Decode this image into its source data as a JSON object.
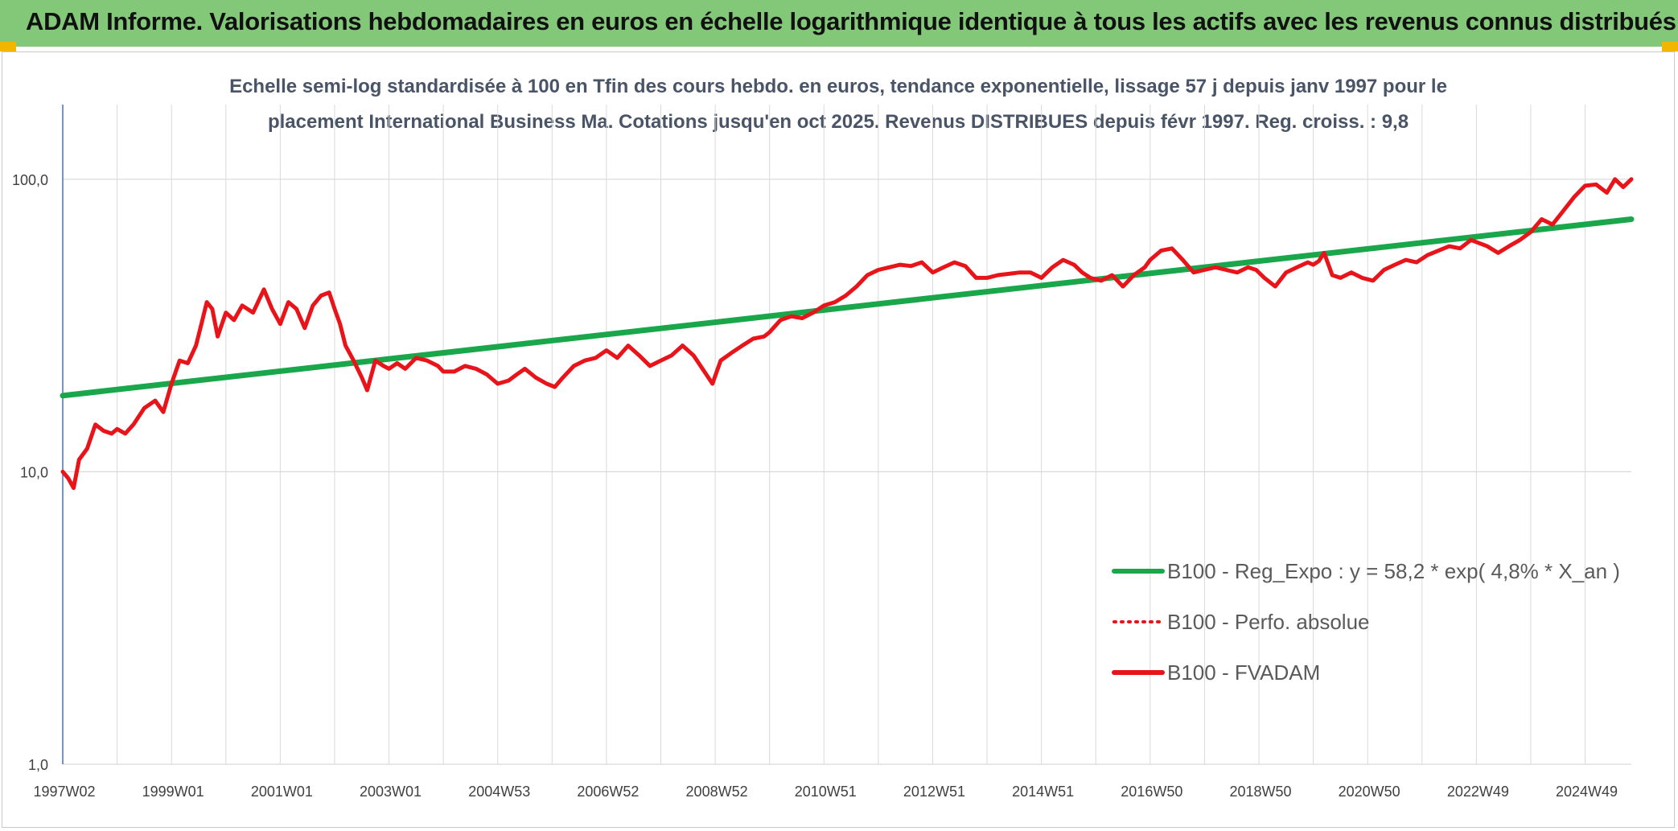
{
  "header": {
    "title": "ADAM Informe. Valorisations hebdomadaires en euros en échelle logarithmique identique à tous les actifs avec les revenus connus distribués"
  },
  "colors": {
    "banner": "#82c878",
    "corner": "#f2b600",
    "trend": "#1aa64a",
    "fvadam": "#e8141a",
    "grid": "#d9d9d9"
  },
  "chart_data": {
    "type": "line",
    "title": "",
    "subtitle_lines": [
      "Echelle semi-log standardisée à 100 en Tfin des cours hebdo. en euros, tendance exponentielle, lissage 57 j depuis janv 1997 pour le",
      "placement International Business Ma. Cotations jusqu'en oct 2025. Revenus DISTRIBUES depuis févr 1997. Reg. croiss. : 9,8"
    ],
    "yscale": "log",
    "ylim": [
      1,
      180
    ],
    "xlim": [
      1997.0,
      2025.85
    ],
    "grid": "y-major and x-category lines",
    "legend_position": "bottom-right",
    "y_ticks": [
      {
        "value": 1,
        "label": "1,0"
      },
      {
        "value": 10,
        "label": "10,0"
      },
      {
        "value": 100,
        "label": "100,0"
      }
    ],
    "x_ticks": [
      {
        "value": 1997.0,
        "label": "1997W02"
      },
      {
        "value": 1999.0,
        "label": "1999W01"
      },
      {
        "value": 2001.0,
        "label": "2001W01"
      },
      {
        "value": 2003.0,
        "label": "2003W01"
      },
      {
        "value": 2005.0,
        "label": "2004W53"
      },
      {
        "value": 2007.0,
        "label": "2006W52"
      },
      {
        "value": 2009.0,
        "label": "2008W52"
      },
      {
        "value": 2011.0,
        "label": "2010W51"
      },
      {
        "value": 2013.0,
        "label": "2012W51"
      },
      {
        "value": 2015.0,
        "label": "2014W51"
      },
      {
        "value": 2017.0,
        "label": "2016W50"
      },
      {
        "value": 2019.0,
        "label": "2018W50"
      },
      {
        "value": 2021.0,
        "label": "2020W50"
      },
      {
        "value": 2023.0,
        "label": "2022W49"
      },
      {
        "value": 2025.0,
        "label": "2024W49"
      }
    ],
    "x_gridlines": [
      1997.0,
      1998.0,
      1999.0,
      2000.0,
      2001.0,
      2002.0,
      2003.0,
      2004.0,
      2005.0,
      2006.0,
      2007.0,
      2008.0,
      2009.0,
      2010.0,
      2011.0,
      2012.0,
      2013.0,
      2014.0,
      2015.0,
      2016.0,
      2017.0,
      2018.0,
      2019.0,
      2020.0,
      2021.0,
      2022.0,
      2023.0,
      2024.0,
      2025.0
    ],
    "series": [
      {
        "name": "B100 - Reg_Expo : y = 58,2 * exp( 4,8% *  X_an )",
        "style": "solid",
        "color": "#1aa64a",
        "x": [
          1997.0,
          2025.85
        ],
        "y": [
          18.2,
          73.0
        ]
      },
      {
        "name": "B100 - Perfo. absolue",
        "style": "dotted",
        "color": "#e8141a",
        "x": [],
        "y": []
      },
      {
        "name": "B100 - FVADAM",
        "style": "solid",
        "color": "#e8141a",
        "x": [
          1997.0,
          1997.1,
          1997.2,
          1997.3,
          1997.45,
          1997.6,
          1997.75,
          1997.9,
          1998.0,
          1998.15,
          1998.3,
          1998.5,
          1998.7,
          1998.85,
          1999.0,
          1999.15,
          1999.3,
          1999.45,
          1999.55,
          1999.65,
          1999.75,
          1999.85,
          2000.0,
          2000.15,
          2000.3,
          2000.5,
          2000.7,
          2000.85,
          2001.0,
          2001.15,
          2001.3,
          2001.45,
          2001.6,
          2001.75,
          2001.9,
          2002.0,
          2002.1,
          2002.2,
          2002.35,
          2002.5,
          2002.6,
          2002.75,
          2002.9,
          2003.0,
          2003.15,
          2003.3,
          2003.5,
          2003.7,
          2003.9,
          2004.0,
          2004.2,
          2004.4,
          2004.6,
          2004.8,
          2005.0,
          2005.2,
          2005.35,
          2005.5,
          2005.7,
          2005.9,
          2006.05,
          2006.2,
          2006.4,
          2006.6,
          2006.8,
          2007.0,
          2007.2,
          2007.4,
          2007.6,
          2007.8,
          2008.0,
          2008.2,
          2008.4,
          2008.6,
          2008.8,
          2008.95,
          2009.1,
          2009.3,
          2009.5,
          2009.7,
          2009.9,
          2010.0,
          2010.2,
          2010.4,
          2010.6,
          2010.8,
          2011.0,
          2011.2,
          2011.4,
          2011.6,
          2011.8,
          2012.0,
          2012.2,
          2012.4,
          2012.6,
          2012.8,
          2013.0,
          2013.2,
          2013.4,
          2013.6,
          2013.8,
          2014.0,
          2014.2,
          2014.4,
          2014.6,
          2014.8,
          2015.0,
          2015.2,
          2015.4,
          2015.6,
          2015.75,
          2015.9,
          2016.1,
          2016.3,
          2016.5,
          2016.7,
          2016.9,
          2017.0,
          2017.2,
          2017.4,
          2017.6,
          2017.8,
          2018.0,
          2018.2,
          2018.4,
          2018.6,
          2018.8,
          2018.95,
          2019.1,
          2019.3,
          2019.5,
          2019.7,
          2019.9,
          2020.0,
          2020.1,
          2020.2,
          2020.35,
          2020.5,
          2020.7,
          2020.9,
          2021.1,
          2021.3,
          2021.5,
          2021.7,
          2021.9,
          2022.1,
          2022.3,
          2022.5,
          2022.7,
          2022.9,
          2023.0,
          2023.2,
          2023.4,
          2023.6,
          2023.8,
          2024.0,
          2024.2,
          2024.4,
          2024.6,
          2024.8,
          2025.0,
          2025.2,
          2025.4,
          2025.55,
          2025.7,
          2025.85
        ],
        "y": [
          10.0,
          9.5,
          8.8,
          11.0,
          12.0,
          14.5,
          13.8,
          13.5,
          14.0,
          13.5,
          14.5,
          16.5,
          17.5,
          16.0,
          20.0,
          24.0,
          23.5,
          27.0,
          32.0,
          38.0,
          36.0,
          29.0,
          35.0,
          33.0,
          37.0,
          35.0,
          42.0,
          36.0,
          32.0,
          38.0,
          36.0,
          31.0,
          37.0,
          40.0,
          41.0,
          36.0,
          32.0,
          27.0,
          24.0,
          21.0,
          19.0,
          24.0,
          23.0,
          22.5,
          23.5,
          22.5,
          24.5,
          24.0,
          23.0,
          22.0,
          22.0,
          23.0,
          22.5,
          21.5,
          20.0,
          20.5,
          21.5,
          22.5,
          21.0,
          20.0,
          19.5,
          21.0,
          23.0,
          24.0,
          24.5,
          26.0,
          24.5,
          27.0,
          25.0,
          23.0,
          24.0,
          25.0,
          27.0,
          25.0,
          22.0,
          20.0,
          24.0,
          25.5,
          27.0,
          28.5,
          29.0,
          30.0,
          33.0,
          34.0,
          33.5,
          35.0,
          37.0,
          38.0,
          40.0,
          43.0,
          47.0,
          49.0,
          50.0,
          51.0,
          50.5,
          52.0,
          48.0,
          50.0,
          52.0,
          50.5,
          46.0,
          46.0,
          47.0,
          47.5,
          48.0,
          48.0,
          46.0,
          50.0,
          53.0,
          51.0,
          48.0,
          46.0,
          45.0,
          47.0,
          43.0,
          47.0,
          50.0,
          53.0,
          57.0,
          58.0,
          53.0,
          48.0,
          49.0,
          50.0,
          49.0,
          48.0,
          50.0,
          49.0,
          46.0,
          43.0,
          48.0,
          50.0,
          52.0,
          51.0,
          52.5,
          56.0,
          47.0,
          46.0,
          48.0,
          46.0,
          45.0,
          49.0,
          51.0,
          53.0,
          52.0,
          55.0,
          57.0,
          59.0,
          58.0,
          62.0,
          61.0,
          59.0,
          56.0,
          59.0,
          62.0,
          66.0,
          73.0,
          70.0,
          78.0,
          87.0,
          95.0,
          96.0,
          90.0,
          100.0,
          94.0,
          100.0
        ]
      }
    ]
  }
}
